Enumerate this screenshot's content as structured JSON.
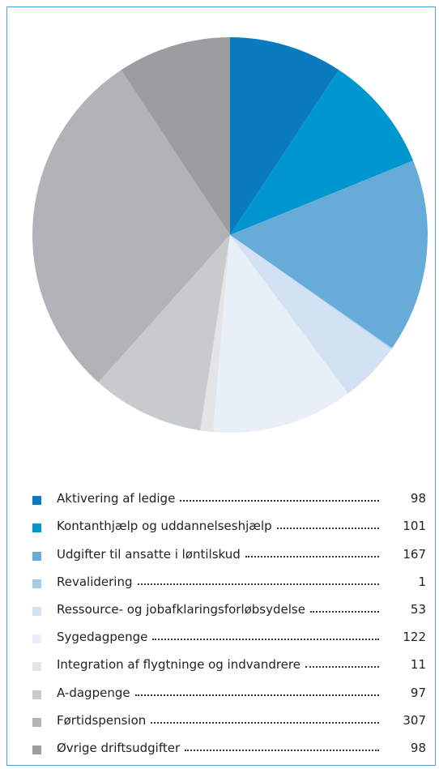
{
  "chart_data": {
    "type": "pie",
    "categories": [
      "Aktivering af ledige",
      "Kontanthjælp og uddannelseshjælp",
      "Udgifter til ansatte i løntilskud",
      "Revalidering",
      "Ressource- og jobafklaringsforløbsydelse",
      "Sygedagpenge",
      "Integration af flygtninge og indvandrere",
      "A-dagpenge",
      "Førtidspension",
      "Øvrige driftsudgifter"
    ],
    "values": [
      98,
      101,
      167,
      1,
      53,
      122,
      11,
      97,
      307,
      98
    ],
    "colors": [
      "#0a7bbf",
      "#0096cf",
      "#67acd8",
      "#a8cbe8",
      "#d2e2f3",
      "#e9eff7",
      "#e3e4e6",
      "#c8cbce",
      "#b1b3b6",
      "#9b9ea1"
    ]
  }
}
